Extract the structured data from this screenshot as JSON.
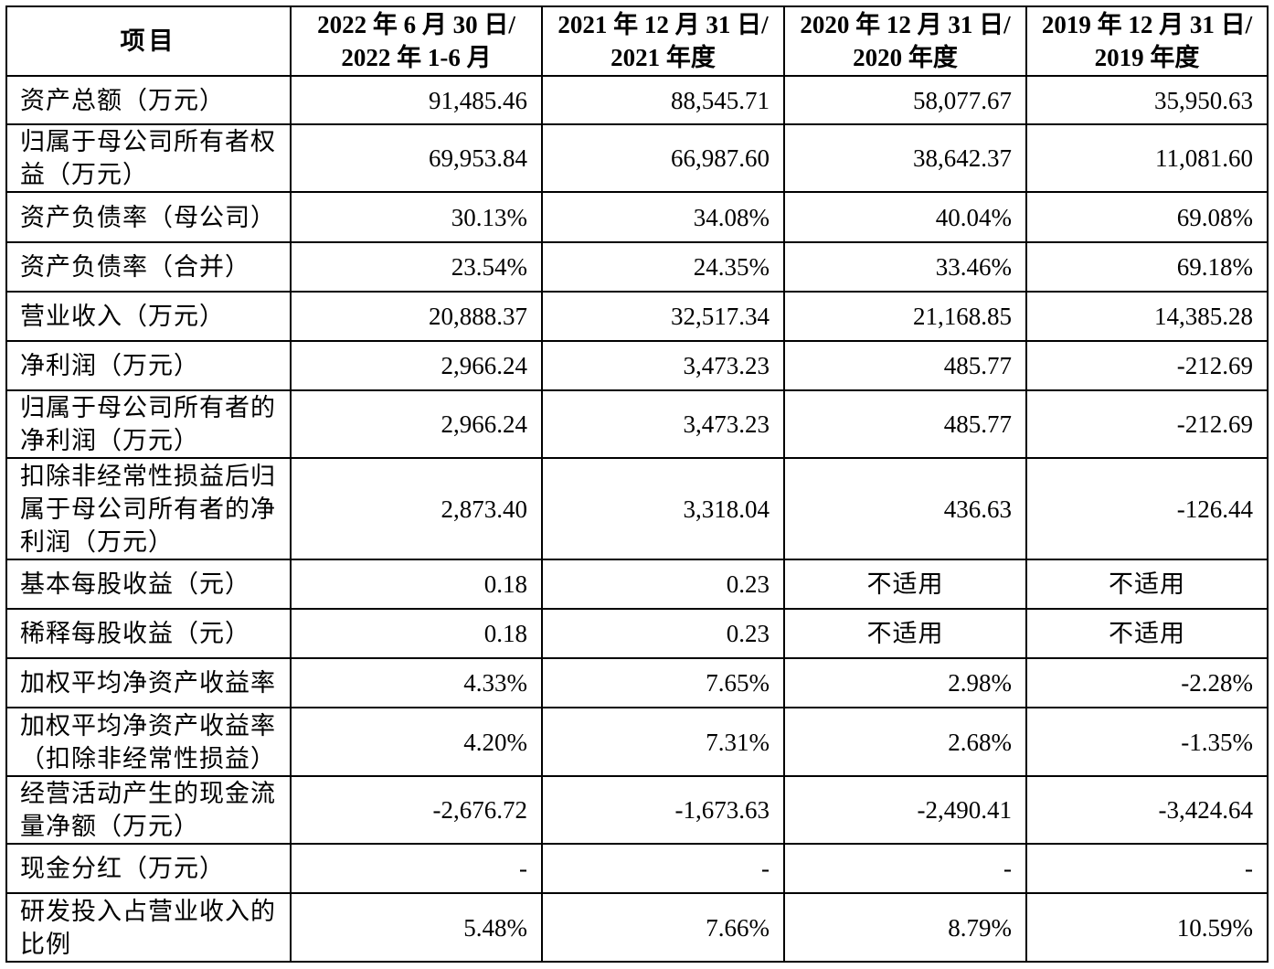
{
  "table": {
    "header": {
      "item": "项目",
      "periods": [
        {
          "line1": "2022 年 6 月 30 日/",
          "line2": "2022 年 1-6 月"
        },
        {
          "line1": "2021 年 12 月 31 日/",
          "line2": "2021 年度"
        },
        {
          "line1": "2020 年 12 月 31 日/",
          "line2": "2020 年度"
        },
        {
          "line1": "2019 年 12 月 31 日/",
          "line2": "2019 年度"
        }
      ]
    },
    "rows": [
      {
        "label": "资产总额（万元）",
        "values": [
          "91,485.46",
          "88,545.71",
          "58,077.67",
          "35,950.63"
        ]
      },
      {
        "label": "归属于母公司所有者权益（万元）",
        "values": [
          "69,953.84",
          "66,987.60",
          "38,642.37",
          "11,081.60"
        ]
      },
      {
        "label": "资产负债率（母公司）",
        "values": [
          "30.13%",
          "34.08%",
          "40.04%",
          "69.08%"
        ]
      },
      {
        "label": "资产负债率（合并）",
        "values": [
          "23.54%",
          "24.35%",
          "33.46%",
          "69.18%"
        ]
      },
      {
        "label": "营业收入（万元）",
        "values": [
          "20,888.37",
          "32,517.34",
          "21,168.85",
          "14,385.28"
        ]
      },
      {
        "label": "净利润（万元）",
        "values": [
          "2,966.24",
          "3,473.23",
          "485.77",
          "-212.69"
        ]
      },
      {
        "label": "归属于母公司所有者的净利润（万元）",
        "values": [
          "2,966.24",
          "3,473.23",
          "485.77",
          "-212.69"
        ]
      },
      {
        "label": "扣除非经常性损益后归属于母公司所有者的净利润（万元）",
        "values": [
          "2,873.40",
          "3,318.04",
          "436.63",
          "-126.44"
        ]
      },
      {
        "label": "基本每股收益（元）",
        "values": [
          "0.18",
          "0.23",
          "不适用",
          "不适用"
        ]
      },
      {
        "label": "稀释每股收益（元）",
        "values": [
          "0.18",
          "0.23",
          "不适用",
          "不适用"
        ]
      },
      {
        "label": "加权平均净资产收益率",
        "values": [
          "4.33%",
          "7.65%",
          "2.98%",
          "-2.28%"
        ]
      },
      {
        "label": "加权平均净资产收益率（扣除非经常性损益）",
        "values": [
          "4.20%",
          "7.31%",
          "2.68%",
          "-1.35%"
        ]
      },
      {
        "label": "经营活动产生的现金流量净额（万元）",
        "values": [
          "-2,676.72",
          "-1,673.63",
          "-2,490.41",
          "-3,424.64"
        ]
      },
      {
        "label": "现金分红（万元）",
        "values": [
          "-",
          "-",
          "-",
          "-"
        ]
      },
      {
        "label": "研发投入占营业收入的比例",
        "values": [
          "5.48%",
          "7.66%",
          "8.79%",
          "10.59%"
        ]
      }
    ]
  }
}
